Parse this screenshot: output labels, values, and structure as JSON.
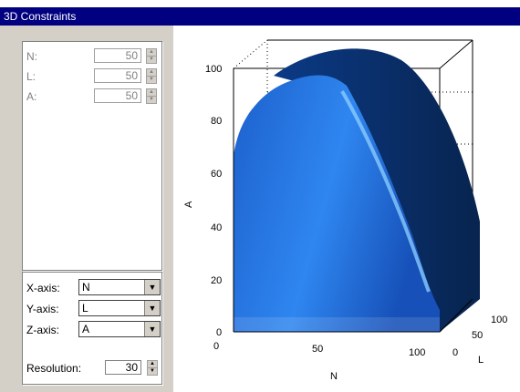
{
  "window": {
    "title": "3D Constraints"
  },
  "constraints": [
    {
      "label": "N:",
      "value": "50"
    },
    {
      "label": "L:",
      "value": "50"
    },
    {
      "label": "A:",
      "value": "50"
    }
  ],
  "axes_select": [
    {
      "label": "X-axis:",
      "value": "N"
    },
    {
      "label": "Y-axis:",
      "value": "L"
    },
    {
      "label": "Z-axis:",
      "value": "A"
    }
  ],
  "resolution": {
    "label": "Resolution:",
    "value": "30"
  },
  "icons": {
    "spin": "spin-updown-icon",
    "dropdown": "chevron-down-icon"
  },
  "colors": {
    "title_bar": "#000080",
    "surface_light": "#2f7de0",
    "surface_dark": "#0a2a6a"
  },
  "chart_data": {
    "type": "surface-3d",
    "title": "",
    "x_axis": {
      "label": "N",
      "ticks": [
        "0",
        "50",
        "100"
      ],
      "range": [
        0,
        100
      ]
    },
    "y_axis": {
      "label": "L",
      "ticks": [
        "0",
        "50",
        "100"
      ],
      "range": [
        0,
        100
      ]
    },
    "z_axis": {
      "label": "A",
      "ticks": [
        "0",
        "20",
        "40",
        "60",
        "80",
        "100"
      ],
      "range": [
        0,
        100
      ]
    },
    "grid": "dotted back planes"
  }
}
